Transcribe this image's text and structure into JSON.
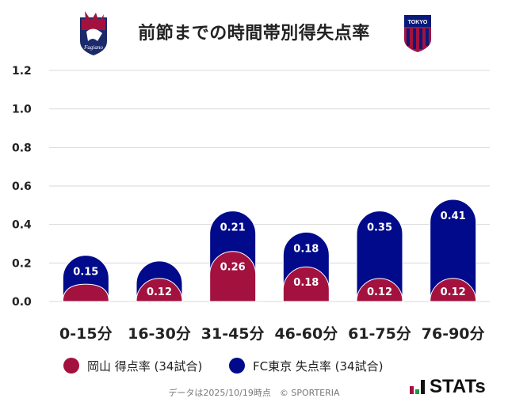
{
  "title": "前節までの時間帯別得失点率",
  "chart_data": {
    "type": "bar",
    "title": "前節までの時間帯別得失点率",
    "categories": [
      "0-15分",
      "16-30分",
      "31-45分",
      "46-60分",
      "61-75分",
      "76-90分"
    ],
    "series": [
      {
        "name": "岡山 得点率 (34試合)",
        "color": "#a3123f",
        "values": [
          0.09,
          0.12,
          0.26,
          0.18,
          0.12,
          0.12
        ],
        "labels": [
          "",
          "0.12",
          "0.26",
          "0.18",
          "0.12",
          "0.12"
        ]
      },
      {
        "name": "FC東京 失点率 (34試合)",
        "color": "#000a8a",
        "values": [
          0.15,
          0.09,
          0.21,
          0.18,
          0.35,
          0.41
        ],
        "labels": [
          "0.15",
          "",
          "0.21",
          "0.18",
          "0.35",
          "0.41"
        ]
      }
    ],
    "ylim": [
      0,
      1.2
    ],
    "yticks": [
      "0.0",
      "0.2",
      "0.4",
      "0.6",
      "0.8",
      "1.0",
      "1.2"
    ],
    "xlabel": "",
    "ylabel": "",
    "grid": true
  },
  "legend": {
    "okayama": "岡山 得点率 (34試合)",
    "fctokyo": "FC東京 失点率 (34試合)"
  },
  "colors": {
    "okayama": "#a3123f",
    "fctokyo": "#000a8a"
  },
  "footer": "データは2025/10/19時点　© SPORTERIA",
  "brand": "STATs",
  "logos": {
    "left_text": "Fagiano",
    "right_text": "TOKYO"
  }
}
